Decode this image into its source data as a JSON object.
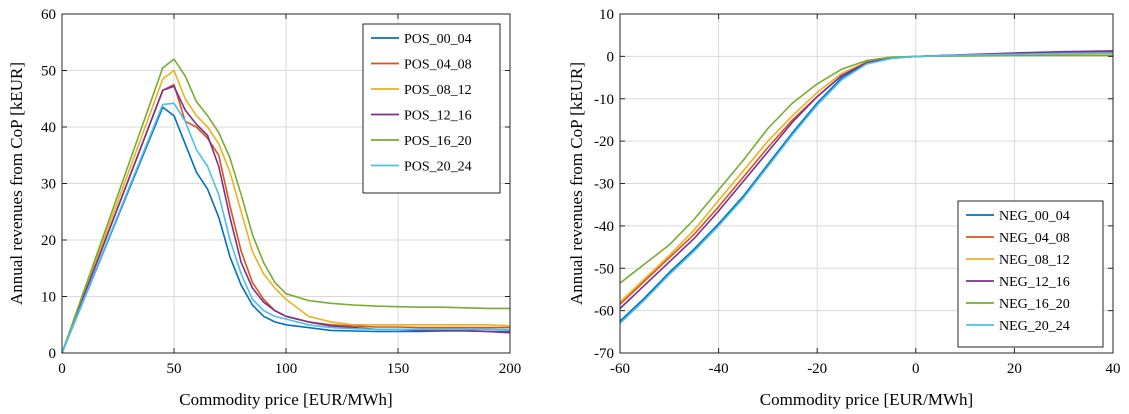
{
  "chart_data": [
    {
      "type": "line",
      "xlabel": "Commodity price [EUR/MWh]",
      "ylabel": "Annual revenues from CoP [kEUR]",
      "xlim": [
        0,
        200
      ],
      "ylim": [
        0,
        60
      ],
      "xticks": [
        0,
        50,
        100,
        150,
        200
      ],
      "yticks": [
        0,
        10,
        20,
        30,
        40,
        50,
        60
      ],
      "grid": true,
      "legend_position": "top-right",
      "series": [
        {
          "name": "POS_00_04",
          "color": "#0072BD",
          "x": [
            0,
            45,
            50,
            55,
            60,
            65,
            70,
            75,
            80,
            85,
            90,
            95,
            100,
            110,
            120,
            130,
            140,
            150,
            160,
            170,
            180,
            190,
            200
          ],
          "y": [
            0,
            43.5,
            42,
            37,
            32,
            29,
            24,
            17,
            12,
            8.5,
            6.5,
            5.5,
            5,
            4.5,
            4,
            3.9,
            3.8,
            3.8,
            3.8,
            3.9,
            3.9,
            3.8,
            3.8
          ]
        },
        {
          "name": "POS_04_08",
          "color": "#D95319",
          "x": [
            0,
            45,
            50,
            55,
            60,
            65,
            70,
            75,
            80,
            85,
            90,
            95,
            100,
            110,
            120,
            130,
            140,
            150,
            160,
            170,
            180,
            190,
            200
          ],
          "y": [
            0,
            46.5,
            47.5,
            41,
            40,
            38,
            35,
            26,
            18,
            12.5,
            9.5,
            7.5,
            6.5,
            5.5,
            5,
            4.8,
            4.6,
            4.6,
            4.5,
            4.5,
            4.5,
            4.5,
            4.5
          ]
        },
        {
          "name": "POS_08_12",
          "color": "#EDB120",
          "x": [
            0,
            45,
            50,
            55,
            60,
            65,
            70,
            75,
            80,
            85,
            90,
            95,
            100,
            110,
            120,
            130,
            140,
            150,
            160,
            170,
            180,
            190,
            200
          ],
          "y": [
            0,
            48.5,
            50,
            45,
            42,
            40,
            37,
            32,
            25,
            18,
            14,
            11.5,
            9.5,
            6.5,
            5.5,
            5,
            5,
            5,
            5,
            5,
            5,
            5,
            4.8
          ]
        },
        {
          "name": "POS_12_16",
          "color": "#7E2F8E",
          "x": [
            0,
            45,
            50,
            55,
            60,
            65,
            70,
            75,
            80,
            85,
            90,
            95,
            100,
            110,
            120,
            130,
            140,
            150,
            160,
            170,
            180,
            190,
            200
          ],
          "y": [
            0,
            46.5,
            47.2,
            43,
            40.5,
            38.5,
            33,
            24,
            16,
            11.5,
            9,
            7.5,
            6.5,
            5.5,
            4.8,
            4.5,
            4.2,
            4.2,
            4,
            4,
            4,
            3.8,
            3.6
          ]
        },
        {
          "name": "POS_16_20",
          "color": "#77AC30",
          "x": [
            0,
            45,
            50,
            55,
            60,
            65,
            70,
            75,
            80,
            85,
            90,
            95,
            100,
            110,
            120,
            130,
            140,
            150,
            160,
            170,
            180,
            190,
            200
          ],
          "y": [
            0,
            50.5,
            52,
            49,
            44.5,
            42,
            39,
            34.5,
            28,
            21,
            16,
            12.5,
            10.5,
            9.3,
            8.8,
            8.5,
            8.3,
            8.2,
            8.1,
            8.1,
            8,
            7.9,
            7.9
          ]
        },
        {
          "name": "POS_20_24",
          "color": "#4DBEEE",
          "x": [
            0,
            45,
            50,
            55,
            60,
            65,
            70,
            75,
            80,
            85,
            90,
            95,
            100,
            110,
            120,
            130,
            140,
            150,
            160,
            170,
            180,
            190,
            200
          ],
          "y": [
            0,
            44,
            44.2,
            41,
            36,
            33,
            28,
            20,
            14,
            9.5,
            7.5,
            6.5,
            6,
            5,
            4.5,
            4.3,
            4.2,
            4.2,
            4.2,
            4.2,
            4.2,
            4.2,
            4.1
          ]
        }
      ]
    },
    {
      "type": "line",
      "xlabel": "Commodity price [EUR/MWh]",
      "ylabel": "Annual revenues from CoP [kEUR]",
      "xlim": [
        -60,
        40
      ],
      "ylim": [
        -70,
        10
      ],
      "xticks": [
        -60,
        -40,
        -20,
        0,
        20,
        40
      ],
      "yticks": [
        -70,
        -60,
        -50,
        -40,
        -30,
        -20,
        -10,
        0,
        10
      ],
      "grid": true,
      "legend_position": "bottom-right",
      "series": [
        {
          "name": "NEG_00_04",
          "color": "#0072BD",
          "x": [
            -60,
            -55,
            -50,
            -45,
            -40,
            -35,
            -30,
            -25,
            -20,
            -15,
            -10,
            -5,
            0,
            10,
            20,
            30,
            40
          ],
          "y": [
            -62.5,
            -57,
            -51,
            -45.5,
            -39.5,
            -33,
            -25.5,
            -18,
            -11,
            -5,
            -1.5,
            -0.5,
            0,
            0.3,
            0.6,
            0.8,
            1.0
          ]
        },
        {
          "name": "NEG_04_08",
          "color": "#D95319",
          "x": [
            -60,
            -55,
            -50,
            -45,
            -40,
            -35,
            -30,
            -25,
            -20,
            -15,
            -10,
            -5,
            0,
            10,
            20,
            30,
            40
          ],
          "y": [
            -58.5,
            -53,
            -47.5,
            -42,
            -35.5,
            -28.5,
            -21.5,
            -15,
            -9.5,
            -4.5,
            -1.5,
            -0.4,
            0,
            0.3,
            0.6,
            0.8,
            0.9
          ]
        },
        {
          "name": "NEG_08_12",
          "color": "#EDB120",
          "x": [
            -60,
            -55,
            -50,
            -45,
            -40,
            -35,
            -30,
            -25,
            -20,
            -15,
            -10,
            -5,
            0,
            10,
            20,
            30,
            40
          ],
          "y": [
            -58,
            -52.5,
            -47,
            -41,
            -34,
            -27,
            -20,
            -14,
            -8.5,
            -4,
            -1.3,
            -0.3,
            0,
            0.2,
            0.4,
            0.5,
            0.6
          ]
        },
        {
          "name": "NEG_12_16",
          "color": "#7E2F8E",
          "x": [
            -60,
            -55,
            -50,
            -45,
            -40,
            -35,
            -30,
            -25,
            -20,
            -15,
            -10,
            -5,
            0,
            10,
            20,
            30,
            40
          ],
          "y": [
            -59.5,
            -54,
            -48.5,
            -43,
            -36.5,
            -29.5,
            -22.5,
            -15.5,
            -9.5,
            -4.5,
            -1.5,
            -0.4,
            0,
            0.4,
            0.8,
            1.1,
            1.3
          ]
        },
        {
          "name": "NEG_16_20",
          "color": "#77AC30",
          "x": [
            -60,
            -55,
            -50,
            -45,
            -40,
            -35,
            -30,
            -25,
            -20,
            -15,
            -10,
            -5,
            0,
            10,
            20,
            30,
            40
          ],
          "y": [
            -53.5,
            -49,
            -44.5,
            -38.5,
            -31.5,
            -24.5,
            -17,
            -11,
            -6.5,
            -3,
            -1,
            -0.2,
            0,
            0.1,
            0.2,
            0.2,
            0.2
          ]
        },
        {
          "name": "NEG_20_24",
          "color": "#4DBEEE",
          "x": [
            -60,
            -55,
            -50,
            -45,
            -40,
            -35,
            -30,
            -25,
            -20,
            -15,
            -10,
            -5,
            0,
            10,
            20,
            30,
            40
          ],
          "y": [
            -63,
            -57.5,
            -51.5,
            -46,
            -40,
            -33.5,
            -26,
            -18.5,
            -11.5,
            -5.5,
            -1.8,
            -0.5,
            0,
            0.3,
            0.5,
            0.7,
            0.8
          ]
        }
      ]
    }
  ]
}
